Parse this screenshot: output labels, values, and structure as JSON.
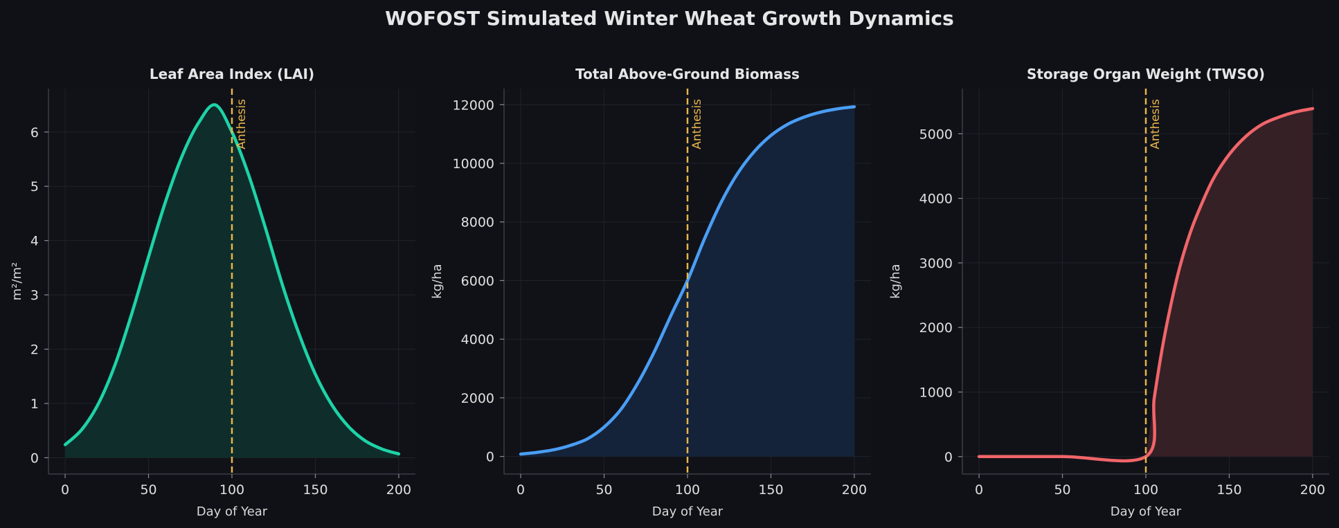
{
  "suptitle": "WOFOST Simulated Winter Wheat Growth Dynamics",
  "background": "#0f1117",
  "chart_data": [
    {
      "type": "area",
      "title": "Leaf Area Index (LAI)",
      "xlabel": "Day of Year",
      "ylabel": "m²/m²",
      "xlim": [
        -10,
        210
      ],
      "ylim": [
        -0.3,
        6.8
      ],
      "xticks": [
        0,
        50,
        100,
        150,
        200
      ],
      "yticks": [
        0,
        1,
        2,
        3,
        4,
        5,
        6
      ],
      "grid": true,
      "color": "#1dd3a7",
      "fill_color": "#0f2e2b",
      "x": [
        0,
        10,
        20,
        30,
        40,
        50,
        60,
        70,
        80,
        90,
        100,
        110,
        120,
        130,
        140,
        150,
        160,
        170,
        180,
        190,
        200
      ],
      "values": [
        0.24,
        0.52,
        1.0,
        1.72,
        2.66,
        3.7,
        4.7,
        5.55,
        6.17,
        6.5,
        6.0,
        5.21,
        4.24,
        3.21,
        2.3,
        1.54,
        0.97,
        0.57,
        0.31,
        0.16,
        0.07
      ],
      "vline": {
        "x": 100,
        "label": "Anthesis",
        "color": "#e8b54a"
      }
    },
    {
      "type": "area",
      "title": "Total Above-Ground Biomass",
      "xlabel": "Day of Year",
      "ylabel": "kg/ha",
      "xlim": [
        -10,
        210
      ],
      "ylim": [
        -600,
        12550
      ],
      "xticks": [
        0,
        50,
        100,
        150,
        200
      ],
      "yticks": [
        0,
        2000,
        4000,
        6000,
        8000,
        10000,
        12000
      ],
      "grid": true,
      "color": "#4a9ef5",
      "fill_color": "#15233a",
      "x": [
        0,
        10,
        20,
        30,
        40,
        50,
        60,
        70,
        80,
        90,
        100,
        110,
        120,
        130,
        140,
        150,
        160,
        170,
        180,
        190,
        200
      ],
      "values": [
        80,
        140,
        230,
        380,
        600,
        1000,
        1600,
        2480,
        3560,
        4800,
        6000,
        7400,
        8650,
        9650,
        10400,
        10950,
        11330,
        11580,
        11750,
        11860,
        11930
      ],
      "vline": {
        "x": 100,
        "label": "Anthesis",
        "color": "#e8b54a"
      }
    },
    {
      "type": "area",
      "title": "Storage Organ Weight (TWSO)",
      "xlabel": "Day of Year",
      "ylabel": "kg/ha",
      "xlim": [
        -10,
        210
      ],
      "ylim": [
        -270,
        5700
      ],
      "xticks": [
        0,
        50,
        100,
        150,
        200
      ],
      "yticks": [
        0,
        1000,
        2000,
        3000,
        4000,
        5000
      ],
      "grid": true,
      "color": "#f06569",
      "fill_color": "#352026",
      "x": [
        0,
        50,
        100,
        105,
        110,
        115,
        120,
        125,
        130,
        140,
        150,
        160,
        170,
        180,
        190,
        200
      ],
      "values": [
        0,
        0,
        0,
        900,
        1700,
        2350,
        2900,
        3340,
        3700,
        4280,
        4680,
        4960,
        5150,
        5260,
        5340,
        5390
      ],
      "vline": {
        "x": 100,
        "label": "Anthesis",
        "color": "#e8b54a"
      }
    }
  ]
}
